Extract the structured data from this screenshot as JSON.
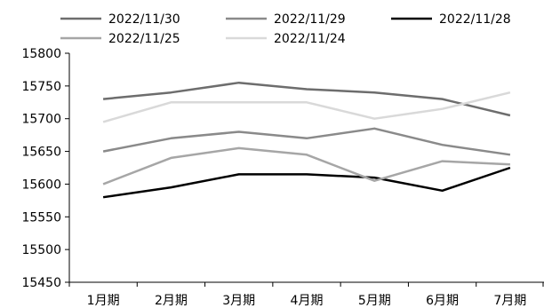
{
  "chart_data": {
    "type": "line",
    "categories": [
      "1月期",
      "2月期",
      "3月期",
      "4月期",
      "5月期",
      "6月期",
      "7月期"
    ],
    "ylim": [
      15450,
      15800
    ],
    "yticks": [
      15450,
      15500,
      15550,
      15600,
      15650,
      15700,
      15750,
      15800
    ],
    "legend_position": "top",
    "grid": false,
    "series": [
      {
        "name": "2022/11/30",
        "color": "#6d6d6d",
        "values": [
          15730,
          15740,
          15755,
          15745,
          15740,
          15730,
          15705
        ]
      },
      {
        "name": "2022/11/29",
        "color": "#8a8a8a",
        "values": [
          15650,
          15670,
          15680,
          15670,
          15685,
          15660,
          15645
        ]
      },
      {
        "name": "2022/11/28",
        "color": "#000000",
        "values": [
          15580,
          15595,
          15615,
          15615,
          15610,
          15590,
          15625
        ]
      },
      {
        "name": "2022/11/25",
        "color": "#a6a6a6",
        "values": [
          15600,
          15640,
          15655,
          15645,
          15605,
          15635,
          15630
        ]
      },
      {
        "name": "2022/11/24",
        "color": "#d9d9d9",
        "values": [
          15695,
          15725,
          15725,
          15725,
          15700,
          15715,
          15740
        ]
      }
    ]
  }
}
